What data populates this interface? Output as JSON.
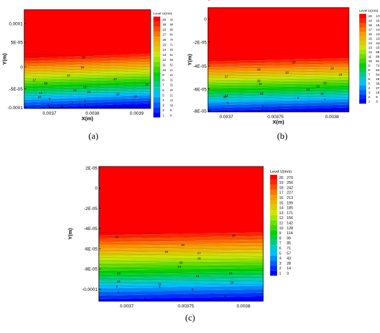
{
  "chart_data": [
    {
      "type": "heatmap",
      "caption": "(a)",
      "xlabel": "X(m)",
      "ylabel": "Y(m)",
      "xticks": [
        "0.0037",
        "0.0038",
        "0.0039"
      ],
      "yticks": [
        "0.0001",
        "5E-05",
        "0",
        "-5E-05",
        "-0.0001"
      ],
      "legend_title": "Level U(m/s)",
      "legend_levels": [
        20,
        19,
        18,
        17,
        16,
        15,
        14,
        13,
        12,
        11,
        10,
        9,
        8,
        7,
        6,
        5,
        4,
        3,
        2,
        1
      ],
      "legend_values": [
        "100",
        "95",
        "89",
        "84",
        "79",
        "74",
        "68",
        "63",
        "58",
        "53",
        "47",
        "42",
        "37",
        "32",
        "26",
        "21",
        "16",
        "11",
        "5",
        "0"
      ],
      "contour_labels": [
        "20",
        "19",
        "18",
        "17",
        "17",
        "16",
        "16",
        "15",
        "14",
        "13",
        "12",
        "12",
        "11",
        "10",
        "9",
        "8",
        "7",
        "6",
        "5",
        "4"
      ],
      "colors": {
        "max": "#ff0000",
        "min": "#0000ff"
      }
    },
    {
      "type": "heatmap",
      "caption": "(b)",
      "xlabel": "X(m)",
      "ylabel": "Y(m)",
      "xticks": [
        "0.0037",
        "0.00375",
        "0.0038"
      ],
      "yticks": [
        "0",
        "-2E-05",
        "-4E-05",
        "-6E-05",
        "-8E-05",
        "-0.0001"
      ],
      "legend_title": "Level U(m/s)",
      "legend_levels": [
        20,
        19,
        18,
        17,
        16,
        15,
        14,
        13,
        12,
        11,
        10,
        9,
        8,
        7,
        6,
        5,
        4,
        3,
        2,
        1
      ],
      "legend_values": [
        "170",
        "161",
        "152",
        "143",
        "134",
        "125",
        "116",
        "107",
        "98",
        "89",
        "81",
        "72",
        "63",
        "54",
        "45",
        "36",
        "27",
        "18",
        "9",
        "0"
      ],
      "contour_labels": [
        "20",
        "19",
        "19",
        "18",
        "18",
        "17",
        "16",
        "16",
        "15",
        "15",
        "14",
        "13",
        "12",
        "11",
        "10",
        "8",
        "7",
        "6",
        "5",
        "4"
      ],
      "colors": {
        "max": "#ff0000",
        "min": "#0000ff"
      }
    },
    {
      "type": "heatmap",
      "caption": "(c)",
      "xlabel": "X(m)",
      "ylabel": "Y(m)",
      "xticks": [
        "0.0037",
        "0.00375",
        "0.0038"
      ],
      "yticks": [
        "2E-05",
        "0",
        "-2E-05",
        "-4E-05",
        "-6E-05",
        "-8E-05",
        "-0.0001"
      ],
      "legend_title": "Level U(m/s)",
      "legend_levels": [
        20,
        19,
        18,
        17,
        16,
        15,
        14,
        13,
        12,
        11,
        10,
        9,
        8,
        7,
        6,
        5,
        4,
        3,
        2,
        1
      ],
      "legend_values": [
        "270",
        "256",
        "242",
        "227",
        "213",
        "199",
        "185",
        "171",
        "156",
        "142",
        "128",
        "114",
        "99",
        "85",
        "71",
        "57",
        "43",
        "28",
        "14",
        "0"
      ],
      "contour_labels": [
        "20",
        "20",
        "19",
        "18",
        "17",
        "16",
        "15",
        "14",
        "13",
        "13",
        "12",
        "11",
        "10",
        "10",
        "9",
        "8",
        "8",
        "6",
        "5",
        "4"
      ],
      "colors": {
        "max": "#ff0000",
        "min": "#0000ff"
      }
    }
  ]
}
